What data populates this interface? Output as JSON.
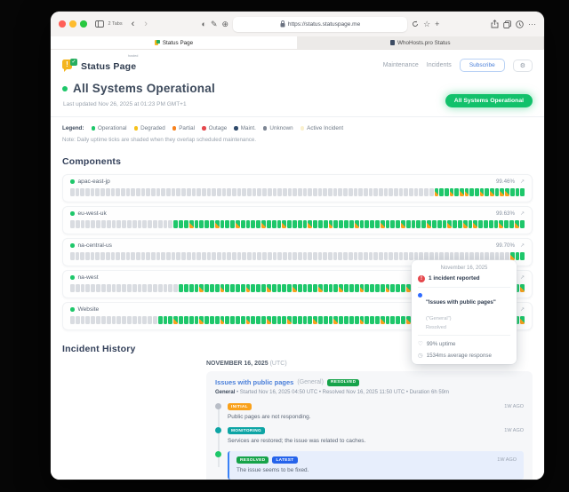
{
  "icons": {
    "sidebar": "⊞",
    "back": "‹",
    "forward": "›",
    "appearance": "◐",
    "markup": "✎",
    "extensions": "⊕",
    "star": "☆",
    "plus": "+",
    "more": "···",
    "gear": "⚙",
    "external_link": "↗",
    "alert": "!",
    "heart": "♡",
    "clock": "◷",
    "logo_exclaim": "!",
    "logo_check": "✓"
  },
  "browser": {
    "tabs_count_label": "2 Tabs",
    "url": "https://status.statuspage.me",
    "tabs": [
      {
        "title": "Status Page"
      },
      {
        "title": "WhoHosts.pro Status"
      }
    ]
  },
  "header": {
    "brand": "Status Page",
    "brand_superscript": "hosted",
    "nav": [
      {
        "label": "Maintenance"
      },
      {
        "label": "Incidents"
      }
    ],
    "subscribe_label": "Subscribe",
    "status_heading": "All Systems Operational",
    "last_updated": "Last updated Nov 26, 2025 at 01:23 PM GMT+1",
    "status_pill": "All Systems Operational"
  },
  "legend": {
    "label": "Legend:",
    "items": [
      {
        "label": "Operational",
        "color": "#1ec76a"
      },
      {
        "label": "Degraded",
        "color": "#f6c21c"
      },
      {
        "label": "Partial",
        "color": "#f8821d"
      },
      {
        "label": "Outage",
        "color": "#e5484d"
      },
      {
        "label": "Maint.",
        "color": "#2e4a6b"
      },
      {
        "label": "Unknown",
        "color": "#7d8694"
      },
      {
        "label": "Active Incident",
        "color": "#faf0cd"
      }
    ],
    "note": "Note: Daily uptime ticks are shaded when they overlap scheduled maintenance."
  },
  "components": {
    "heading": "Components",
    "items": [
      {
        "name": "apac-east-jp",
        "uptime": "99.46%",
        "pattern": "........................................................................MGGMGMMGGMGMGMMGGG"
      },
      {
        "name": "eu-west-uk",
        "uptime": "99.63%",
        "pattern": "....................GGGMGGGGMGGGMGGGGMGGGMGGGGMGGGMGGGGMGGGGMGGGMGGGGMGGGMGGMGMGGGGMGGMG"
      },
      {
        "name": "na-central-us",
        "uptime": "99.70%",
        "pattern": ".......................................................................................MGG"
      },
      {
        "name": "na-west",
        "uptime": "",
        "pattern": ".....................GGGGMGGGMGGGGMGGGMGGGGMGGGGMGGGMGGGMGGGGMGGGMGGGGMGGGMGGGMGGGGMGGGM"
      },
      {
        "name": "Website",
        "uptime": "",
        "pattern": ".................GGGMGGGGMGGGMGGGGMGGGMGGGMGGGGMGGGMGGGGMGGGMGGGGMGHGGMGGGMGGGMGGGMGGGGM"
      }
    ]
  },
  "tooltip": {
    "date": "November 16, 2025",
    "incident_count": "1 incident reported",
    "incident_name": "\"Issues with public pages\"",
    "incident_scope": "(\"General\")",
    "incident_status": "Resolved",
    "uptime": "99% uptime",
    "response": "1534ms average response"
  },
  "incident_history": {
    "heading": "Incident History",
    "date": "NOVEMBER 16, 2025",
    "date_suffix": " (UTC)",
    "incident": {
      "title": "Issues with public pages",
      "scope": "(General)",
      "badge": {
        "label": "RESOLVED",
        "bg": "#16a34a"
      },
      "meta_bold": "General",
      "meta_rest": " • Started Nov 16, 2025 04:50 UTC • Resolved Nov 16, 2025 11:50 UTC • Duration 6h 59m",
      "updates": [
        {
          "badges": [
            {
              "label": "INITIAL",
              "bg": "#f9a11b"
            }
          ],
          "dot_color": "#b9bec7",
          "time": "1W AGO",
          "text": "Public pages are not responding.",
          "highlight": false
        },
        {
          "badges": [
            {
              "label": "MONITORING",
              "bg": "#0ea5a5"
            }
          ],
          "dot_color": "#0ea5a5",
          "time": "1W AGO",
          "text": "Services are restored; the issue was related to caches.",
          "highlight": false
        },
        {
          "badges": [
            {
              "label": "RESOLVED",
              "bg": "#16a34a"
            },
            {
              "label": "LATEST",
              "bg": "#2563eb"
            }
          ],
          "dot_color": "#1ec76a",
          "time": "1W AGO",
          "text": "The issue seems to be fixed.",
          "highlight": true
        }
      ]
    }
  }
}
